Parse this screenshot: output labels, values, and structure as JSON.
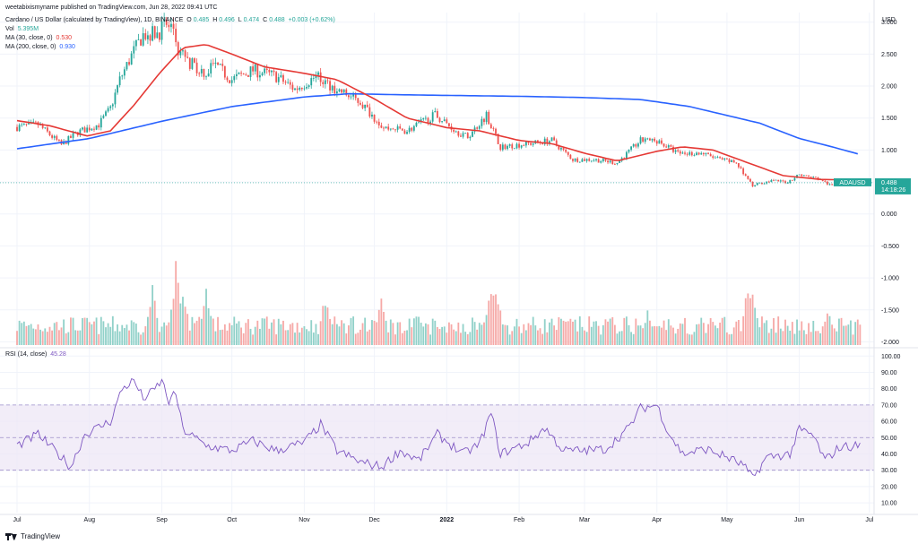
{
  "publisher": "weetabixismyname published on TradingView.com, Jun 28, 2022 09:41 UTC",
  "legend": {
    "symbol": "Cardano / US Dollar (calculated by TradingView), 1D, BINANCE",
    "o_label": "O",
    "o": "0.485",
    "h_label": "H",
    "h": "0.496",
    "l_label": "L",
    "l": "0.474",
    "c_label": "C",
    "c": "0.488",
    "change": "+0.003 (+0.62%)",
    "vol_label": "Vol",
    "vol": "5.395M",
    "ma30_label": "MA (30, close, 0)",
    "ma30": "0.530",
    "ma200_label": "MA (200, close, 0)",
    "ma200": "0.930",
    "rsi_label": "RSI (14, close)",
    "rsi": "45.28"
  },
  "footer": {
    "brand": "TradingView"
  },
  "colors": {
    "up": "#26a69a",
    "down": "#ef5350",
    "vol_up": "#91d1c9",
    "vol_down": "#f6a9a7",
    "ma30": "#e53935",
    "ma200": "#2962ff",
    "rsi_line": "#7e57c2",
    "rsi_band": "#ede7f6",
    "grid": "#f0f3fa",
    "axis_text": "#131722",
    "price_tag": "#26a69a"
  },
  "chart_data": [
    {
      "type": "candlestick",
      "symbol": "ADAUSD",
      "ylabel": "USD",
      "ylim": [
        -2.05,
        3.15
      ],
      "y_ticks": [
        "3.000",
        "2.500",
        "2.000",
        "1.500",
        "1.000",
        "0.500",
        "0.000",
        "-0.500",
        "-1.000",
        "-1.500",
        "-2.000"
      ],
      "x_ticks": [
        "Jul",
        "Aug",
        "Sep",
        "Oct",
        "Nov",
        "Dec",
        "2022",
        "Feb",
        "Mar",
        "Apr",
        "May",
        "Jun",
        "Jul"
      ],
      "last_price": {
        "symbol": "ADAUSD",
        "value": "0.488",
        "countdown": "14:18:26"
      },
      "anchors": [
        [
          "2021-07-01",
          1.36
        ],
        [
          "2021-07-10",
          1.4
        ],
        [
          "2021-07-20",
          1.08
        ],
        [
          "2021-07-27",
          1.28
        ],
        [
          "2021-08-05",
          1.4
        ],
        [
          "2021-08-10",
          1.65
        ],
        [
          "2021-08-14",
          2.1
        ],
        [
          "2021-08-20",
          2.55
        ],
        [
          "2021-08-24",
          2.8
        ],
        [
          "2021-08-31",
          2.85
        ],
        [
          "2021-09-02",
          2.95
        ],
        [
          "2021-09-06",
          2.9
        ],
        [
          "2021-09-08",
          2.55
        ],
        [
          "2021-09-12",
          2.4
        ],
        [
          "2021-09-20",
          2.2
        ],
        [
          "2021-09-23",
          2.35
        ],
        [
          "2021-10-01",
          2.1
        ],
        [
          "2021-10-10",
          2.25
        ],
        [
          "2021-10-20",
          2.15
        ],
        [
          "2021-10-28",
          1.95
        ],
        [
          "2021-11-06",
          2.15
        ],
        [
          "2021-11-08",
          2.1
        ],
        [
          "2021-11-15",
          1.95
        ],
        [
          "2021-11-25",
          1.75
        ],
        [
          "2021-11-30",
          1.55
        ],
        [
          "2021-12-05",
          1.35
        ],
        [
          "2021-12-15",
          1.3
        ],
        [
          "2021-12-27",
          1.55
        ],
        [
          "2022-01-05",
          1.3
        ],
        [
          "2022-01-10",
          1.2
        ],
        [
          "2022-01-18",
          1.55
        ],
        [
          "2022-01-24",
          1.05
        ],
        [
          "2022-02-05",
          1.1
        ],
        [
          "2022-02-15",
          1.15
        ],
        [
          "2022-02-24",
          0.85
        ],
        [
          "2022-03-05",
          0.85
        ],
        [
          "2022-03-15",
          0.8
        ],
        [
          "2022-03-25",
          1.15
        ],
        [
          "2022-04-01",
          1.15
        ],
        [
          "2022-04-10",
          0.95
        ],
        [
          "2022-04-20",
          0.95
        ],
        [
          "2022-04-28",
          0.85
        ],
        [
          "2022-05-05",
          0.8
        ],
        [
          "2022-05-12",
          0.45
        ],
        [
          "2022-05-20",
          0.52
        ],
        [
          "2022-05-27",
          0.5
        ],
        [
          "2022-06-01",
          0.62
        ],
        [
          "2022-06-05",
          0.58
        ],
        [
          "2022-06-10",
          0.55
        ],
        [
          "2022-06-14",
          0.45
        ],
        [
          "2022-06-20",
          0.48
        ],
        [
          "2022-06-27",
          0.488
        ]
      ],
      "ma30_path": [
        [
          "2021-07-01",
          1.46
        ],
        [
          "2021-07-15",
          1.38
        ],
        [
          "2021-07-31",
          1.22
        ],
        [
          "2021-08-10",
          1.3
        ],
        [
          "2021-08-20",
          1.7
        ],
        [
          "2021-08-31",
          2.2
        ],
        [
          "2021-09-10",
          2.6
        ],
        [
          "2021-09-20",
          2.65
        ],
        [
          "2021-10-01",
          2.5
        ],
        [
          "2021-10-15",
          2.3
        ],
        [
          "2021-11-01",
          2.2
        ],
        [
          "2021-11-15",
          2.1
        ],
        [
          "2021-12-01",
          1.8
        ],
        [
          "2021-12-15",
          1.5
        ],
        [
          "2022-01-01",
          1.35
        ],
        [
          "2022-01-15",
          1.3
        ],
        [
          "2022-02-01",
          1.15
        ],
        [
          "2022-02-15",
          1.1
        ],
        [
          "2022-03-01",
          0.95
        ],
        [
          "2022-03-15",
          0.83
        ],
        [
          "2022-04-01",
          0.98
        ],
        [
          "2022-04-12",
          1.05
        ],
        [
          "2022-04-25",
          1.0
        ],
        [
          "2022-05-10",
          0.8
        ],
        [
          "2022-05-25",
          0.6
        ],
        [
          "2022-06-10",
          0.54
        ],
        [
          "2022-06-27",
          0.53
        ]
      ],
      "ma200_path": [
        [
          "2021-07-01",
          1.02
        ],
        [
          "2021-08-01",
          1.18
        ],
        [
          "2021-09-01",
          1.45
        ],
        [
          "2021-10-01",
          1.68
        ],
        [
          "2021-11-01",
          1.83
        ],
        [
          "2021-11-20",
          1.88
        ],
        [
          "2021-12-20",
          1.86
        ],
        [
          "2022-02-01",
          1.84
        ],
        [
          "2022-03-01",
          1.82
        ],
        [
          "2022-03-25",
          1.79
        ],
        [
          "2022-04-15",
          1.68
        ],
        [
          "2022-05-15",
          1.42
        ],
        [
          "2022-06-01",
          1.18
        ],
        [
          "2022-06-15",
          1.05
        ],
        [
          "2022-06-27",
          0.93
        ]
      ],
      "volume_spikes": [
        [
          "2021-08-28",
          0.8
        ],
        [
          "2021-09-07",
          1.0
        ],
        [
          "2021-09-10",
          0.75
        ],
        [
          "2021-09-20",
          0.7
        ],
        [
          "2021-11-10",
          0.65
        ],
        [
          "2021-12-04",
          0.6
        ],
        [
          "2022-01-20",
          0.82
        ],
        [
          "2022-01-22",
          0.84
        ],
        [
          "2022-03-28",
          0.45
        ],
        [
          "2022-05-10",
          0.78
        ],
        [
          "2022-05-12",
          0.8
        ],
        [
          "2022-06-13",
          0.5
        ]
      ]
    },
    {
      "type": "line",
      "name": "RSI (14, close)",
      "ylim": [
        4,
        104
      ],
      "y_ticks": [
        "100.00",
        "90.00",
        "80.00",
        "70.00",
        "60.00",
        "50.00",
        "40.00",
        "30.00",
        "20.00",
        "10.00"
      ],
      "band": [
        30,
        70
      ],
      "midline": 50,
      "points": [
        [
          "2021-07-01",
          45
        ],
        [
          "2021-07-10",
          52
        ],
        [
          "2021-07-20",
          38
        ],
        [
          "2021-07-24",
          32
        ],
        [
          "2021-07-30",
          52
        ],
        [
          "2021-08-10",
          60
        ],
        [
          "2021-08-15",
          80
        ],
        [
          "2021-08-20",
          85
        ],
        [
          "2021-08-24",
          74
        ],
        [
          "2021-08-28",
          78
        ],
        [
          "2021-09-01",
          85
        ],
        [
          "2021-09-04",
          72
        ],
        [
          "2021-09-07",
          77
        ],
        [
          "2021-09-10",
          55
        ],
        [
          "2021-09-20",
          45
        ],
        [
          "2021-10-01",
          42
        ],
        [
          "2021-10-10",
          48
        ],
        [
          "2021-10-20",
          42
        ],
        [
          "2021-11-01",
          47
        ],
        [
          "2021-11-08",
          58
        ],
        [
          "2021-11-15",
          42
        ],
        [
          "2021-11-25",
          35
        ],
        [
          "2021-12-04",
          32
        ],
        [
          "2021-12-12",
          42
        ],
        [
          "2021-12-20",
          36
        ],
        [
          "2021-12-28",
          52
        ],
        [
          "2022-01-08",
          40
        ],
        [
          "2022-01-15",
          46
        ],
        [
          "2022-01-20",
          65
        ],
        [
          "2022-01-24",
          40
        ],
        [
          "2022-02-05",
          47
        ],
        [
          "2022-02-12",
          56
        ],
        [
          "2022-02-20",
          42
        ],
        [
          "2022-03-01",
          42
        ],
        [
          "2022-03-10",
          43
        ],
        [
          "2022-03-20",
          56
        ],
        [
          "2022-03-25",
          68
        ],
        [
          "2022-04-01",
          70
        ],
        [
          "2022-04-06",
          53
        ],
        [
          "2022-04-12",
          40
        ],
        [
          "2022-04-22",
          43
        ],
        [
          "2022-05-01",
          38
        ],
        [
          "2022-05-08",
          33
        ],
        [
          "2022-05-12",
          25
        ],
        [
          "2022-05-18",
          38
        ],
        [
          "2022-05-28",
          40
        ],
        [
          "2022-06-01",
          55
        ],
        [
          "2022-06-07",
          51
        ],
        [
          "2022-06-12",
          36
        ],
        [
          "2022-06-18",
          44
        ],
        [
          "2022-06-27",
          45.28
        ]
      ]
    }
  ]
}
